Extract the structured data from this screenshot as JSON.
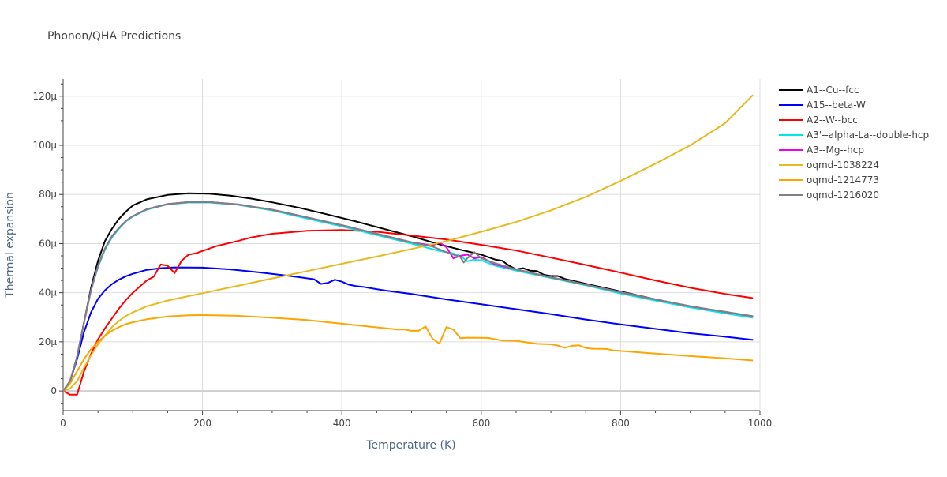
{
  "chart_data": {
    "type": "line",
    "title": "Phonon/QHA Predictions",
    "xlabel": "Temperature (K)",
    "ylabel": "Thermal expansion",
    "xlim": [
      0,
      1000
    ],
    "ylim": [
      -8,
      127
    ],
    "y_unit_suffix": "μ",
    "x_ticks": [
      0,
      200,
      400,
      600,
      800,
      1000
    ],
    "y_ticks": [
      0,
      20,
      40,
      60,
      80,
      100,
      120
    ],
    "x_tick_labels": [
      "0",
      "200",
      "400",
      "600",
      "800",
      "1000"
    ],
    "y_tick_labels": [
      "0",
      "20μ",
      "40μ",
      "60μ",
      "80μ",
      "100μ",
      "120μ"
    ],
    "legend_position": "right",
    "series": [
      {
        "name": "A1--Cu--fcc",
        "color": "#000000",
        "points": [
          [
            0,
            0
          ],
          [
            10,
            4
          ],
          [
            20,
            14
          ],
          [
            30,
            28
          ],
          [
            40,
            42
          ],
          [
            50,
            53
          ],
          [
            60,
            61
          ],
          [
            70,
            66
          ],
          [
            80,
            70
          ],
          [
            90,
            73
          ],
          [
            100,
            75.5
          ],
          [
            120,
            78
          ],
          [
            150,
            79.8
          ],
          [
            180,
            80.5
          ],
          [
            210,
            80.3
          ],
          [
            240,
            79.5
          ],
          [
            270,
            78.3
          ],
          [
            300,
            76.8
          ],
          [
            340,
            74.5
          ],
          [
            380,
            71.8
          ],
          [
            420,
            69
          ],
          [
            460,
            66
          ],
          [
            500,
            63
          ],
          [
            540,
            59.7
          ],
          [
            570,
            57.5
          ],
          [
            600,
            55.5
          ],
          [
            620,
            53.5
          ],
          [
            630,
            53
          ],
          [
            640,
            51
          ],
          [
            650,
            49.5
          ],
          [
            660,
            50
          ],
          [
            670,
            49
          ],
          [
            680,
            48.8
          ],
          [
            690,
            47.3
          ],
          [
            700,
            46.8
          ],
          [
            710,
            46.8
          ],
          [
            720,
            45.6
          ],
          [
            760,
            43
          ],
          [
            800,
            40.5
          ],
          [
            850,
            37.3
          ],
          [
            900,
            34.5
          ],
          [
            950,
            32
          ],
          [
            990,
            30.3
          ]
        ]
      },
      {
        "name": "A15--beta-W",
        "color": "#0000ff",
        "points": [
          [
            0,
            0
          ],
          [
            10,
            4
          ],
          [
            20,
            13
          ],
          [
            30,
            24
          ],
          [
            40,
            32
          ],
          [
            50,
            37.5
          ],
          [
            60,
            41
          ],
          [
            70,
            43.5
          ],
          [
            80,
            45.3
          ],
          [
            90,
            46.7
          ],
          [
            100,
            47.7
          ],
          [
            120,
            49.3
          ],
          [
            140,
            50
          ],
          [
            160,
            50.3
          ],
          [
            200,
            50.2
          ],
          [
            240,
            49.5
          ],
          [
            280,
            48.3
          ],
          [
            320,
            47
          ],
          [
            340,
            46.3
          ],
          [
            360,
            45.5
          ],
          [
            370,
            43.6
          ],
          [
            380,
            44
          ],
          [
            390,
            45.3
          ],
          [
            400,
            44.5
          ],
          [
            410,
            43.3
          ],
          [
            420,
            42.7
          ],
          [
            430,
            42.4
          ],
          [
            460,
            41
          ],
          [
            500,
            39.5
          ],
          [
            550,
            37.3
          ],
          [
            600,
            35.3
          ],
          [
            650,
            33.3
          ],
          [
            700,
            31.3
          ],
          [
            750,
            29.1
          ],
          [
            800,
            27.1
          ],
          [
            850,
            25.3
          ],
          [
            900,
            23.5
          ],
          [
            950,
            22.1
          ],
          [
            990,
            20.8
          ]
        ]
      },
      {
        "name": "A2--W--bcc",
        "color": "#ff0000",
        "points": [
          [
            0,
            0
          ],
          [
            10,
            -1.5
          ],
          [
            20,
            -1.5
          ],
          [
            30,
            8
          ],
          [
            40,
            15
          ],
          [
            50,
            21
          ],
          [
            60,
            25.5
          ],
          [
            70,
            29.5
          ],
          [
            80,
            33.5
          ],
          [
            90,
            37
          ],
          [
            100,
            40
          ],
          [
            110,
            42.5
          ],
          [
            120,
            45
          ],
          [
            130,
            46.5
          ],
          [
            140,
            51.5
          ],
          [
            150,
            51
          ],
          [
            160,
            48
          ],
          [
            170,
            53
          ],
          [
            180,
            55.5
          ],
          [
            190,
            56
          ],
          [
            200,
            57
          ],
          [
            220,
            59
          ],
          [
            250,
            61
          ],
          [
            270,
            62.5
          ],
          [
            300,
            64
          ],
          [
            350,
            65.2
          ],
          [
            400,
            65.5
          ],
          [
            450,
            64.8
          ],
          [
            500,
            63.3
          ],
          [
            550,
            61.7
          ],
          [
            600,
            59.5
          ],
          [
            650,
            57.2
          ],
          [
            700,
            54.3
          ],
          [
            750,
            51.3
          ],
          [
            800,
            48.2
          ],
          [
            850,
            45
          ],
          [
            900,
            42
          ],
          [
            950,
            39.5
          ],
          [
            990,
            37.8
          ]
        ]
      },
      {
        "name": "A3'--alpha-La--double-hcp",
        "color": "#00e5e5",
        "points": [
          [
            0,
            0
          ],
          [
            10,
            4
          ],
          [
            20,
            14
          ],
          [
            30,
            28
          ],
          [
            40,
            41
          ],
          [
            50,
            50.5
          ],
          [
            60,
            57.5
          ],
          [
            70,
            62.5
          ],
          [
            80,
            66
          ],
          [
            90,
            69
          ],
          [
            100,
            71
          ],
          [
            120,
            73.8
          ],
          [
            150,
            76
          ],
          [
            180,
            76.7
          ],
          [
            210,
            76.7
          ],
          [
            250,
            75.8
          ],
          [
            300,
            73.5
          ],
          [
            350,
            70.2
          ],
          [
            400,
            67
          ],
          [
            450,
            63.5
          ],
          [
            500,
            60
          ],
          [
            540,
            57
          ],
          [
            560,
            56
          ],
          [
            570,
            55
          ],
          [
            580,
            52.8
          ],
          [
            590,
            53.5
          ],
          [
            600,
            53.2
          ],
          [
            620,
            51
          ],
          [
            650,
            49
          ],
          [
            700,
            46
          ],
          [
            750,
            43
          ],
          [
            800,
            39.7
          ],
          [
            850,
            36.8
          ],
          [
            900,
            34
          ],
          [
            950,
            31.6
          ],
          [
            990,
            29.8
          ]
        ]
      },
      {
        "name": "A3--Mg--hcp",
        "color": "#ee00ee",
        "points": [
          [
            0,
            0
          ],
          [
            10,
            4
          ],
          [
            20,
            14
          ],
          [
            30,
            28
          ],
          [
            40,
            41
          ],
          [
            50,
            51
          ],
          [
            60,
            58
          ],
          [
            70,
            63
          ],
          [
            80,
            66.3
          ],
          [
            90,
            69.2
          ],
          [
            100,
            71.2
          ],
          [
            120,
            74
          ],
          [
            150,
            76.1
          ],
          [
            180,
            76.9
          ],
          [
            210,
            76.9
          ],
          [
            250,
            76
          ],
          [
            300,
            73.8
          ],
          [
            350,
            70.7
          ],
          [
            400,
            67.5
          ],
          [
            450,
            64
          ],
          [
            500,
            60.5
          ],
          [
            530,
            59.2
          ],
          [
            540,
            60.5
          ],
          [
            550,
            58.5
          ],
          [
            560,
            54
          ],
          [
            570,
            55
          ],
          [
            580,
            55.5
          ],
          [
            590,
            54
          ],
          [
            600,
            54.5
          ],
          [
            620,
            51.5
          ],
          [
            650,
            49.5
          ],
          [
            700,
            46.3
          ],
          [
            750,
            43.3
          ],
          [
            800,
            40.2
          ],
          [
            850,
            37.3
          ],
          [
            900,
            34.5
          ],
          [
            950,
            32.2
          ],
          [
            990,
            30.4
          ]
        ]
      },
      {
        "name": "oqmd-1038224",
        "color": "#e6b91e",
        "points": [
          [
            0,
            0
          ],
          [
            10,
            1
          ],
          [
            20,
            4
          ],
          [
            30,
            9.5
          ],
          [
            40,
            14.5
          ],
          [
            50,
            19
          ],
          [
            60,
            22.5
          ],
          [
            70,
            26
          ],
          [
            80,
            28.5
          ],
          [
            90,
            30.5
          ],
          [
            100,
            32
          ],
          [
            120,
            34.5
          ],
          [
            150,
            36.8
          ],
          [
            180,
            38.6
          ],
          [
            200,
            39.8
          ],
          [
            250,
            42.8
          ],
          [
            300,
            45.8
          ],
          [
            350,
            48.8
          ],
          [
            400,
            51.8
          ],
          [
            450,
            54.7
          ],
          [
            500,
            57.8
          ],
          [
            550,
            61
          ],
          [
            600,
            64.8
          ],
          [
            650,
            68.8
          ],
          [
            700,
            73.5
          ],
          [
            750,
            79
          ],
          [
            800,
            85.5
          ],
          [
            850,
            92.5
          ],
          [
            900,
            100
          ],
          [
            950,
            109
          ],
          [
            990,
            120.5
          ]
        ]
      },
      {
        "name": "oqmd-1214773",
        "color": "#ffa500",
        "points": [
          [
            0,
            0
          ],
          [
            10,
            3
          ],
          [
            20,
            8
          ],
          [
            30,
            13
          ],
          [
            40,
            17
          ],
          [
            50,
            20
          ],
          [
            60,
            22.5
          ],
          [
            70,
            24.5
          ],
          [
            80,
            26
          ],
          [
            90,
            27.2
          ],
          [
            100,
            28
          ],
          [
            120,
            29.2
          ],
          [
            150,
            30.3
          ],
          [
            180,
            30.8
          ],
          [
            200,
            30.9
          ],
          [
            250,
            30.6
          ],
          [
            300,
            29.8
          ],
          [
            350,
            28.9
          ],
          [
            400,
            27.4
          ],
          [
            450,
            25.9
          ],
          [
            480,
            25
          ],
          [
            490,
            25
          ],
          [
            500,
            24.5
          ],
          [
            510,
            24.5
          ],
          [
            520,
            26.3
          ],
          [
            530,
            21.3
          ],
          [
            540,
            19.3
          ],
          [
            550,
            26
          ],
          [
            560,
            25
          ],
          [
            570,
            21.5
          ],
          [
            580,
            21.7
          ],
          [
            610,
            21.6
          ],
          [
            630,
            20.5
          ],
          [
            650,
            20.4
          ],
          [
            680,
            19.2
          ],
          [
            700,
            19
          ],
          [
            710,
            18.5
          ],
          [
            720,
            17.6
          ],
          [
            730,
            18.4
          ],
          [
            740,
            18.6
          ],
          [
            750,
            17.5
          ],
          [
            760,
            17.2
          ],
          [
            780,
            17.1
          ],
          [
            790,
            16.5
          ],
          [
            800,
            16.3
          ],
          [
            850,
            15.2
          ],
          [
            900,
            14.2
          ],
          [
            950,
            13.3
          ],
          [
            990,
            12.4
          ]
        ]
      },
      {
        "name": "oqmd-1216020",
        "color": "#808080",
        "points": [
          [
            0,
            0
          ],
          [
            10,
            4
          ],
          [
            20,
            14
          ],
          [
            30,
            28
          ],
          [
            40,
            41
          ],
          [
            50,
            51
          ],
          [
            60,
            58
          ],
          [
            70,
            63
          ],
          [
            80,
            66.3
          ],
          [
            90,
            69.2
          ],
          [
            100,
            71.2
          ],
          [
            120,
            74
          ],
          [
            150,
            76.1
          ],
          [
            180,
            76.9
          ],
          [
            210,
            76.9
          ],
          [
            250,
            76
          ],
          [
            300,
            73.8
          ],
          [
            350,
            70.7
          ],
          [
            400,
            67.5
          ],
          [
            450,
            64
          ],
          [
            500,
            60.5
          ],
          [
            530,
            58.8
          ],
          [
            550,
            56.5
          ],
          [
            560,
            55.5
          ],
          [
            570,
            54.5
          ],
          [
            575,
            52.3
          ],
          [
            580,
            54
          ],
          [
            590,
            56.5
          ],
          [
            600,
            54
          ],
          [
            620,
            52
          ],
          [
            650,
            49.5
          ],
          [
            700,
            46.3
          ],
          [
            750,
            43.3
          ],
          [
            800,
            40.2
          ],
          [
            850,
            37.3
          ],
          [
            900,
            34.5
          ],
          [
            950,
            32.2
          ],
          [
            990,
            30.4
          ]
        ]
      }
    ]
  }
}
